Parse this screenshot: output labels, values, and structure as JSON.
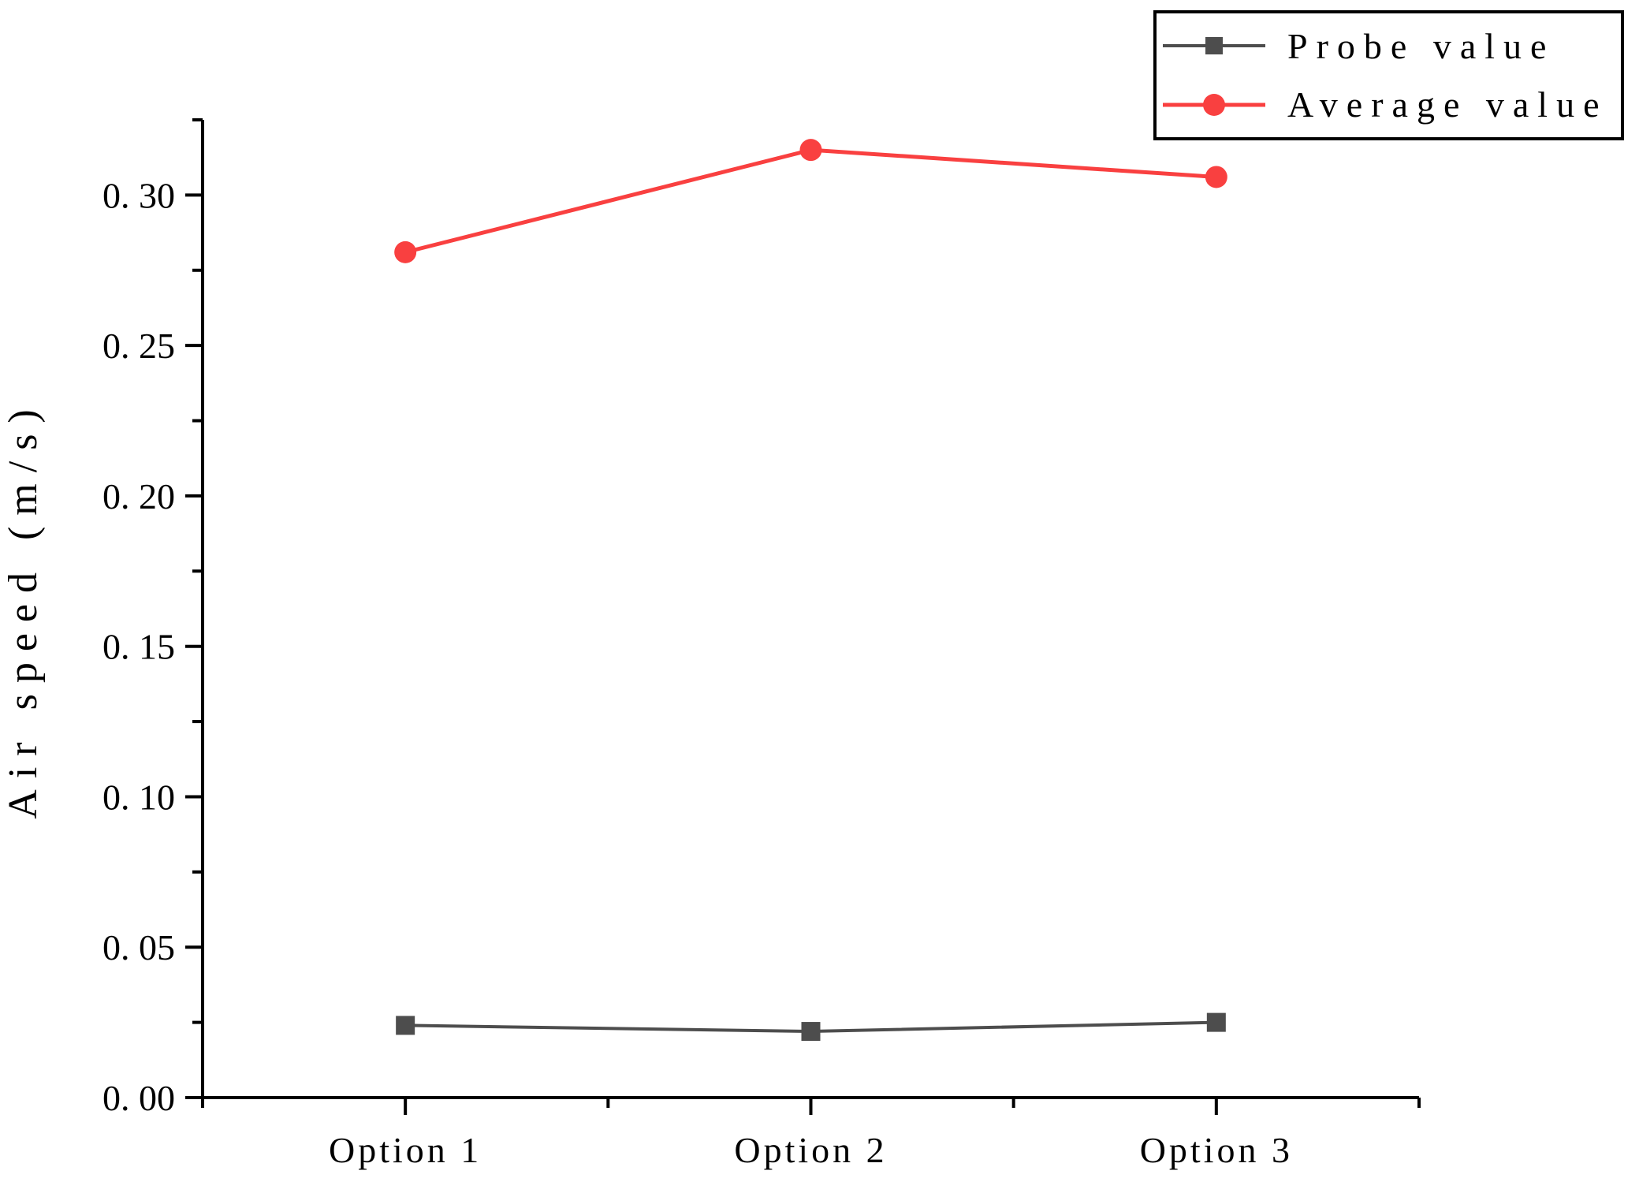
{
  "chart_data": {
    "type": "line",
    "title": "",
    "categories": [
      "Option 1",
      "Option 2",
      "Option 3"
    ],
    "series": [
      {
        "name": "Probe value",
        "values": [
          0.024,
          0.022,
          0.025
        ],
        "color": "#4D4D4D",
        "marker": "square",
        "line_width": 4
      },
      {
        "name": "Average value",
        "values": [
          0.281,
          0.315,
          0.306
        ],
        "color": "#F94040",
        "marker": "circle",
        "line_width": 5
      }
    ],
    "xlabel": "",
    "ylabel": "Air speed (m/s)",
    "ylim": [
      0,
      0.325
    ],
    "yticks": [
      0,
      0.05,
      0.1,
      0.15,
      0.2,
      0.25,
      0.3
    ],
    "ytick_labels": [
      "0. 00",
      "0. 05",
      "0. 10",
      "0. 15",
      "0. 20",
      "0. 25",
      "0. 30"
    ],
    "yticks_minor": [
      0.025,
      0.075,
      0.125,
      0.175,
      0.225,
      0.275,
      0.325
    ],
    "grid": false,
    "legend_position": "top-right",
    "axis_color": "#000000",
    "background": "#FFFFFF"
  }
}
